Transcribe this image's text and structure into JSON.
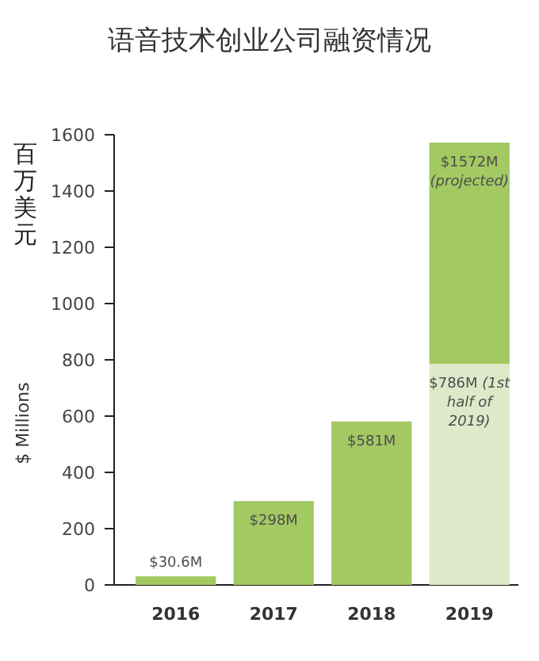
{
  "chart_data": {
    "type": "bar",
    "title": "语音技术创业公司融资情况",
    "ylabel": "$ Millions",
    "stacked": true,
    "categories": [
      "2016",
      "2017",
      "2018",
      "2019"
    ],
    "series": [
      {
        "color": "#a3c963",
        "values": [
          30.6,
          298,
          581,
          null
        ],
        "value_labels": [
          "$30.6M",
          "$298M",
          "$581M",
          null
        ]
      },
      {
        "color": "#dfe9c9",
        "values": [
          null,
          null,
          null,
          786
        ]
      },
      {
        "color": "#a3c963",
        "values": [
          null,
          null,
          null,
          786
        ]
      }
    ],
    "annotations": [
      "百万美元",
      {
        "text": "$1572M *(projected)*",
        "x": "2019",
        "y": 1572
      },
      {
        "text": "$786M *(1st half of 2019)*",
        "x": "2019",
        "y": 786
      }
    ],
    "ylim": [
      0,
      1600
    ],
    "yticks": [
      0,
      200,
      400,
      600,
      800,
      1000,
      1200,
      1400,
      1600
    ]
  }
}
